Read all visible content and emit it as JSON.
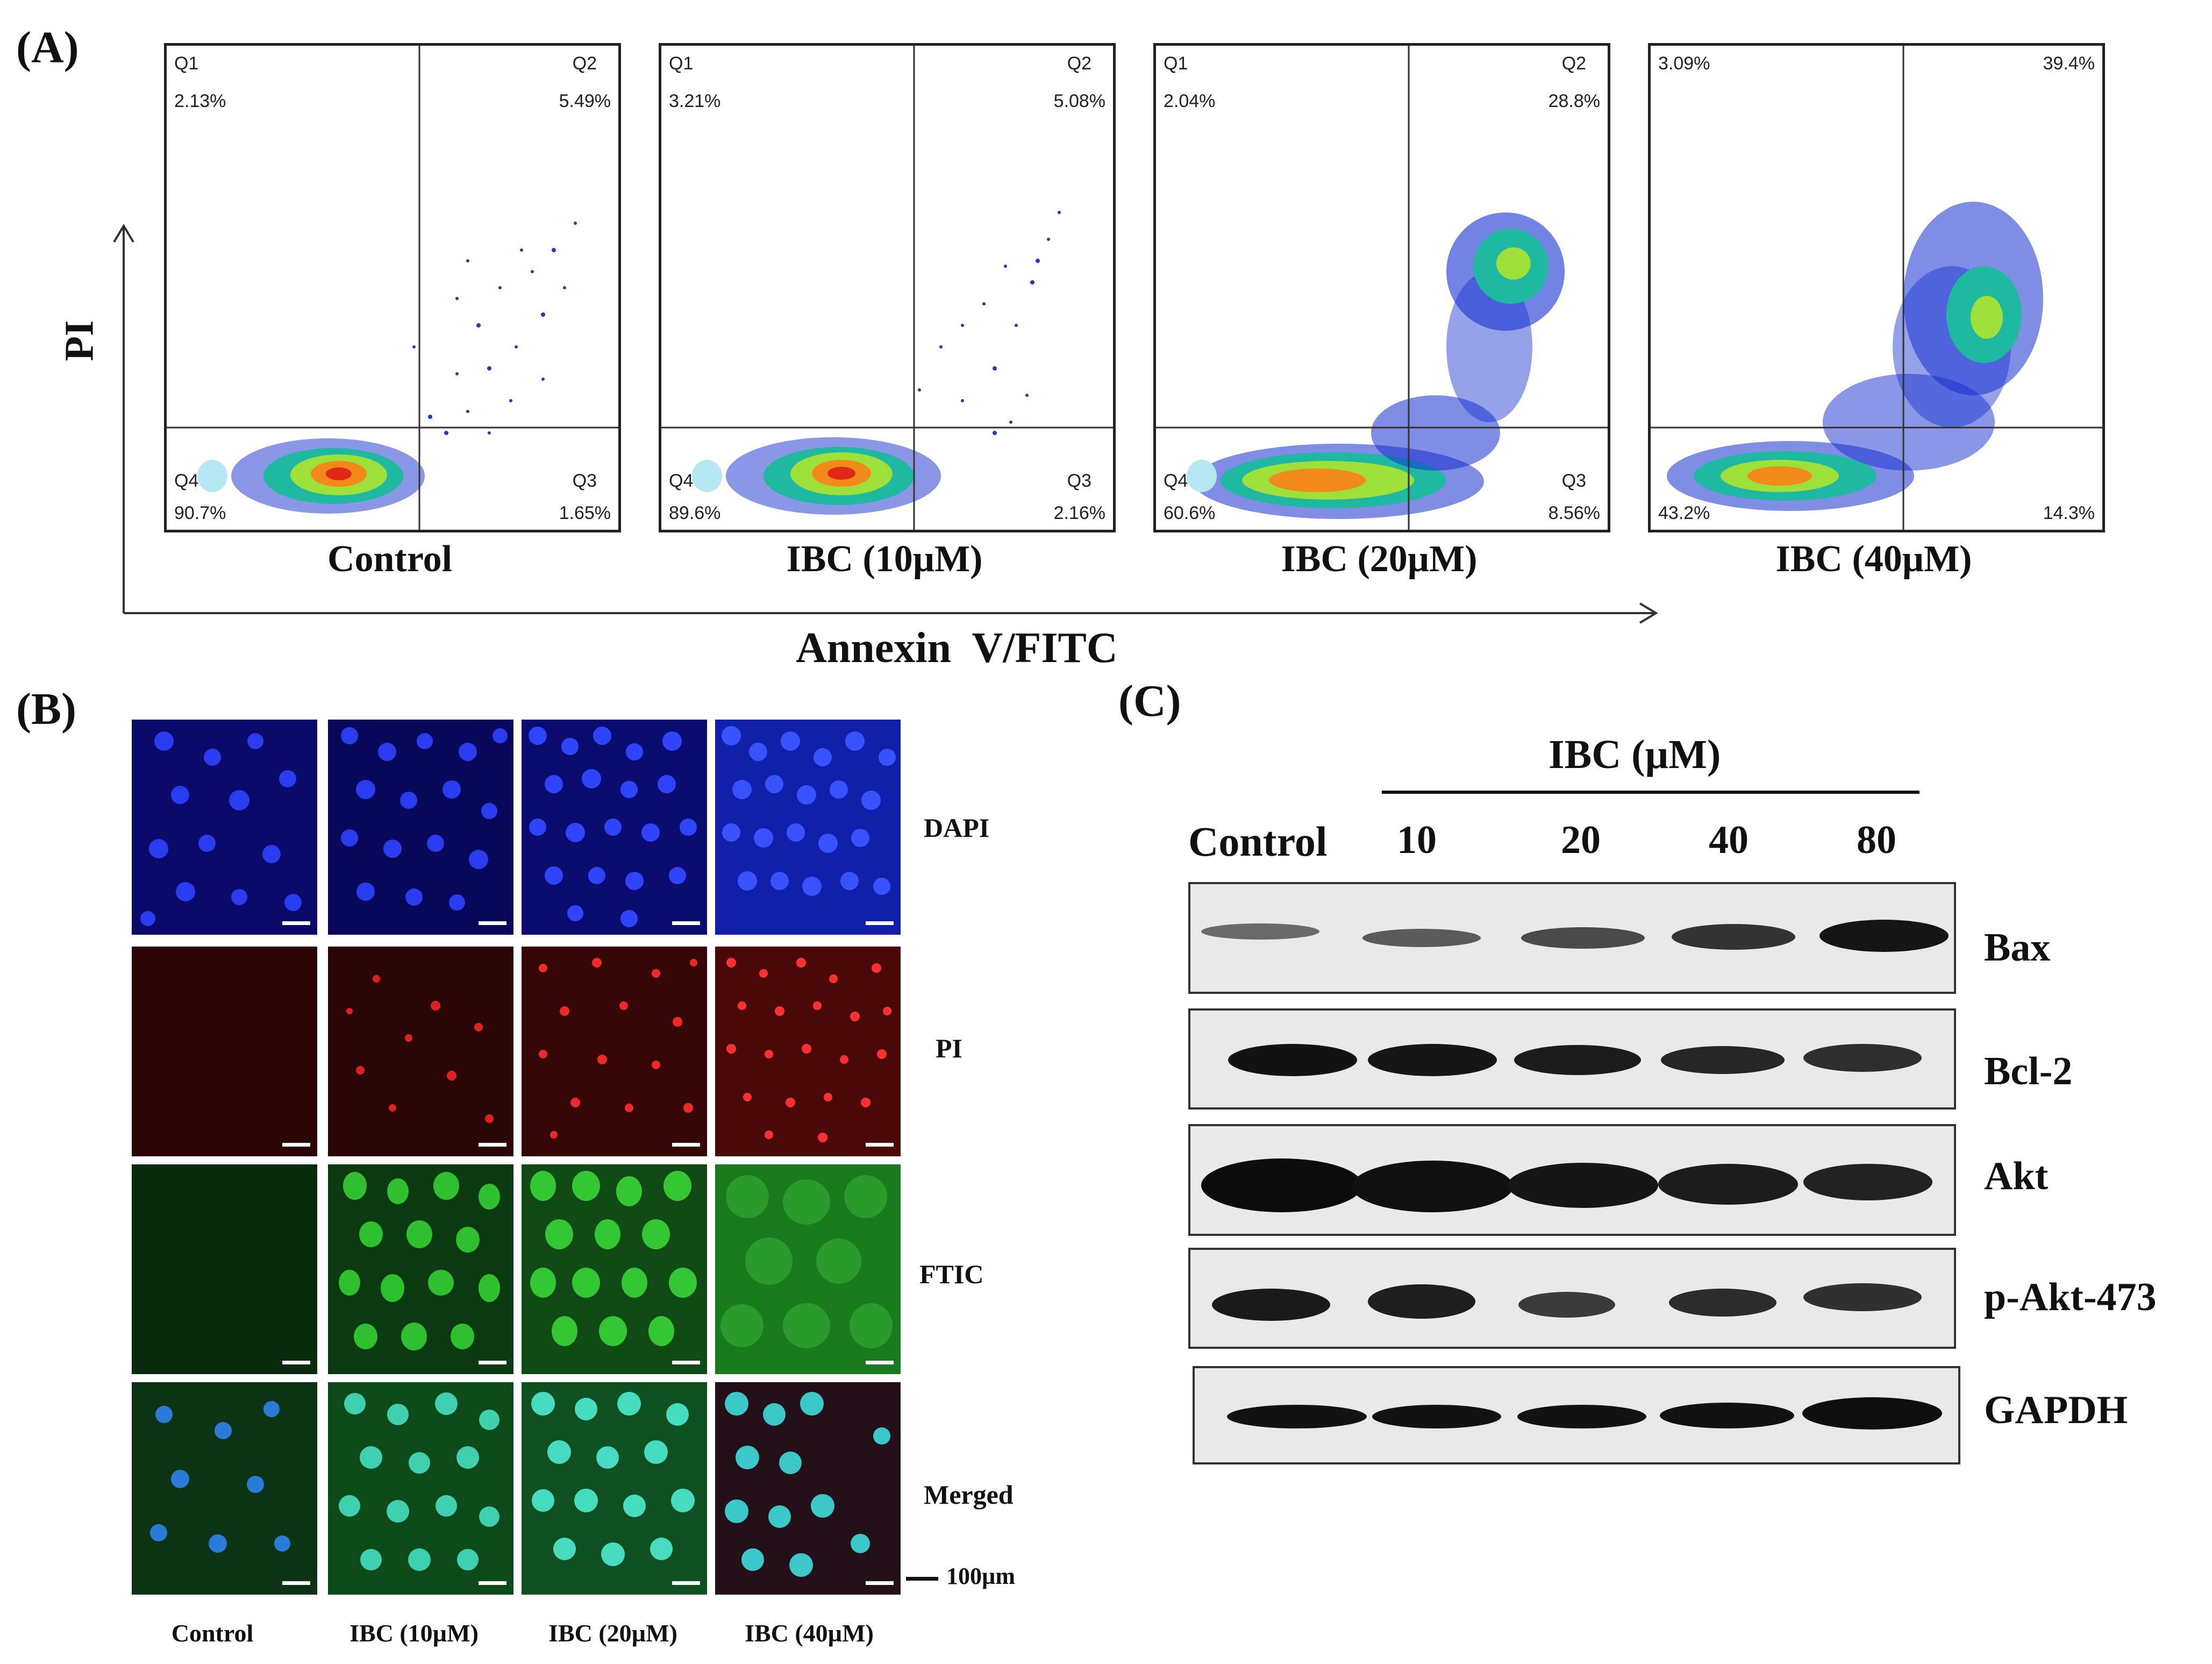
{
  "panels": {
    "a": "(A)",
    "b": "(B)",
    "c": "(C)"
  },
  "flow": {
    "y_axis_label": "PI",
    "x_axis_label": "Annexin  V/FITC",
    "plots": [
      {
        "condition": "Control",
        "q1_label": "Q1",
        "q1": "2.13%",
        "q2_label": "Q2",
        "q2": "5.49%",
        "q3_label": "Q3",
        "q3": "1.65%",
        "q4_label": "Q4",
        "q4": "90.7%"
      },
      {
        "condition": "IBC (10µM)",
        "q1_label": "Q1",
        "q1": "3.21%",
        "q2_label": "Q2",
        "q2": "5.08%",
        "q3_label": "Q3",
        "q3": "2.16%",
        "q4_label": "Q4",
        "q4": "89.6%"
      },
      {
        "condition": "IBC (20µM)",
        "q1_label": "Q1",
        "q1": "2.04%",
        "q2_label": "Q2",
        "q2": "28.8%",
        "q3_label": "Q3",
        "q3": "8.56%",
        "q4_label": "Q4",
        "q4": "60.6%"
      },
      {
        "condition": "IBC (40µM)",
        "q1_label": "",
        "q1": "3.09%",
        "q2_label": "",
        "q2": "39.4%",
        "q3_label": "",
        "q3": "14.3%",
        "q4_label": "",
        "q4": "43.2%"
      }
    ]
  },
  "microscopy": {
    "stains": [
      "DAPI",
      "PI",
      "FTIC",
      "Merged"
    ],
    "columns": [
      "Control",
      "IBC (10µM)",
      "IBC (20µM)",
      "IBC (40µM)"
    ],
    "scale_bar": "100µm",
    "colors": {
      "dapi": "#1a2bd6",
      "pi": "#c01818",
      "fitc": "#1c9a1c",
      "merged": "#35c8b0"
    }
  },
  "western": {
    "treatment_label": "IBC (µM)",
    "control_label": "Control",
    "doses": [
      "10",
      "20",
      "40",
      "80"
    ],
    "proteins": [
      "Bax",
      "Bcl-2",
      "Akt",
      "p-Akt-473",
      "GAPDH"
    ]
  }
}
